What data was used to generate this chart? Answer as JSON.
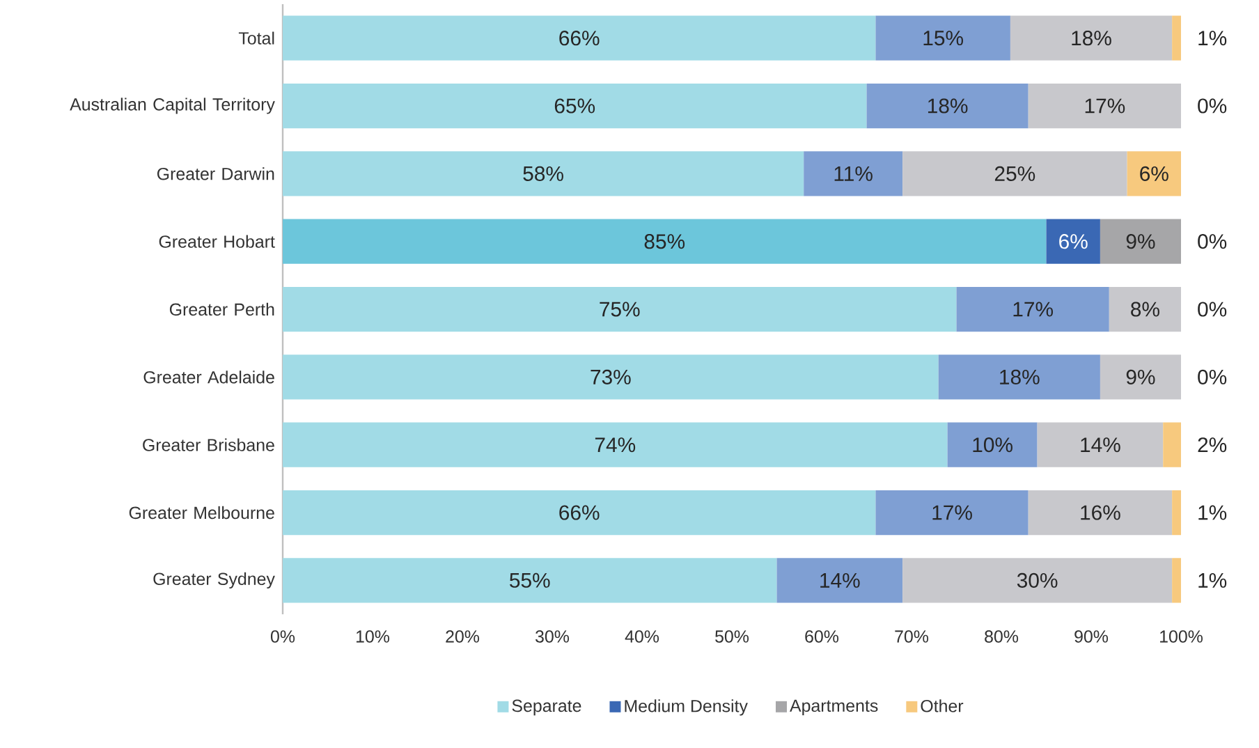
{
  "chart_data": {
    "type": "bar",
    "orientation": "horizontal",
    "stacked": true,
    "categories": [
      "Total",
      "Australian Capital Territory",
      "Greater Darwin",
      "Greater Hobart",
      "Greater Perth",
      "Greater Adelaide",
      "Greater Brisbane",
      "Greater Melbourne",
      "Greater Sydney"
    ],
    "series": [
      {
        "name": "Separate",
        "color": "#a1dbe6",
        "colors": [
          "#a1dbe6",
          "#a1dbe6",
          "#a1dbe6",
          "#6cc6db",
          "#a1dbe6",
          "#a1dbe6",
          "#a1dbe6",
          "#a1dbe6",
          "#a1dbe6"
        ],
        "values": [
          66,
          65,
          58,
          85,
          75,
          73,
          74,
          66,
          55
        ],
        "value_labels": [
          "66%",
          "65%",
          "58%",
          "85%",
          "75%",
          "73%",
          "74%",
          "66%",
          "55%"
        ]
      },
      {
        "name": "Medium Density",
        "color": "#3a68b4",
        "colors": [
          "#7f9fd3",
          "#7f9fd3",
          "#7f9fd3",
          "#3a68b4",
          "#7f9fd3",
          "#7f9fd3",
          "#7f9fd3",
          "#7f9fd3",
          "#7f9fd3"
        ],
        "values": [
          15,
          18,
          11,
          6,
          17,
          18,
          10,
          17,
          14
        ],
        "value_labels": [
          "15%",
          "18%",
          "11%",
          "6%",
          "17%",
          "18%",
          "10%",
          "17%",
          "14%"
        ]
      },
      {
        "name": "Apartments",
        "color": "#a6a6a8",
        "colors": [
          "#c8c8cc",
          "#c8c8cc",
          "#c8c8cc",
          "#a6a6a8",
          "#c8c8cc",
          "#c8c8cc",
          "#c8c8cc",
          "#c8c8cc",
          "#c8c8cc"
        ],
        "values": [
          18,
          17,
          25,
          9,
          8,
          9,
          14,
          16,
          30
        ],
        "value_labels": [
          "18%",
          "17%",
          "25%",
          "9%",
          "8%",
          "9%",
          "14%",
          "16%",
          "30%"
        ]
      },
      {
        "name": "Other",
        "color": "#f7c97e",
        "colors": [
          "#f7c97e",
          "#f7c97e",
          "#f7c97e",
          "#f7c97e",
          "#f7c97e",
          "#f7c97e",
          "#f7c97e",
          "#f7c97e",
          "#f7c97e"
        ],
        "values": [
          1,
          0,
          6,
          0,
          0,
          0,
          2,
          1,
          1
        ],
        "value_labels": [
          "1%",
          "0%",
          "6%",
          "0%",
          "0%",
          "0%",
          "2%",
          "1%",
          "1%"
        ]
      }
    ],
    "xlim": [
      0,
      100
    ],
    "xticks": [
      {
        "value": 0,
        "label": "0%"
      },
      {
        "value": 10,
        "label": "10%"
      },
      {
        "value": 20,
        "label": "20%"
      },
      {
        "value": 30,
        "label": "30%"
      },
      {
        "value": 40,
        "label": "40%"
      },
      {
        "value": 50,
        "label": "50%"
      },
      {
        "value": 60,
        "label": "60%"
      },
      {
        "value": 70,
        "label": "70%"
      },
      {
        "value": 80,
        "label": "80%"
      },
      {
        "value": 90,
        "label": "90%"
      },
      {
        "value": 100,
        "label": "100%"
      }
    ],
    "legend": "bottom"
  }
}
